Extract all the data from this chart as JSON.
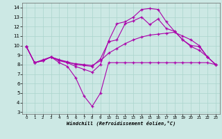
{
  "background_color": "#cce8e4",
  "grid_color": "#aad4cc",
  "line_color": "#aa00aa",
  "xlabel": "Windchill (Refroidissement éolien,°C)",
  "xlim_min": -0.5,
  "xlim_max": 23.5,
  "ylim_min": 2.8,
  "ylim_max": 14.5,
  "yticks": [
    3,
    4,
    5,
    6,
    7,
    8,
    9,
    10,
    11,
    12,
    13,
    14
  ],
  "xticks": [
    0,
    1,
    2,
    3,
    4,
    5,
    6,
    7,
    8,
    9,
    10,
    11,
    12,
    13,
    14,
    15,
    16,
    17,
    18,
    19,
    20,
    21,
    22,
    23
  ],
  "series": [
    {
      "x": [
        0,
        1,
        2,
        3,
        4,
        5,
        6,
        7,
        8,
        9,
        10,
        11,
        12,
        13,
        14,
        15,
        16,
        17,
        18,
        19,
        20,
        21,
        22,
        23
      ],
      "y": [
        9.9,
        8.2,
        8.4,
        8.8,
        8.2,
        7.8,
        6.6,
        4.7,
        3.6,
        5.0,
        8.2,
        8.2,
        8.2,
        8.2,
        8.2,
        8.2,
        8.2,
        8.2,
        8.2,
        8.2,
        8.2,
        8.2,
        8.2,
        8.0
      ]
    },
    {
      "x": [
        0,
        1,
        2,
        3,
        4,
        5,
        6,
        7,
        8,
        9,
        10,
        11,
        12,
        13,
        14,
        15,
        16,
        17,
        18,
        19,
        20,
        21,
        22,
        23
      ],
      "y": [
        9.9,
        8.2,
        8.4,
        8.8,
        8.4,
        8.2,
        8.1,
        8.0,
        7.9,
        8.4,
        9.2,
        9.7,
        10.2,
        10.6,
        10.9,
        11.1,
        11.2,
        11.3,
        11.4,
        11.0,
        10.6,
        10.0,
        8.8,
        8.0
      ]
    },
    {
      "x": [
        0,
        1,
        2,
        3,
        4,
        5,
        6,
        7,
        8,
        9,
        10,
        11,
        12,
        13,
        14,
        15,
        16,
        17,
        18,
        19,
        20,
        21,
        22,
        23
      ],
      "y": [
        9.9,
        8.2,
        8.4,
        8.8,
        8.5,
        8.3,
        8.0,
        7.9,
        7.8,
        8.6,
        10.4,
        10.6,
        12.3,
        12.6,
        13.0,
        12.2,
        12.8,
        11.8,
        11.5,
        10.6,
        9.9,
        9.5,
        8.8,
        8.0
      ]
    },
    {
      "x": [
        0,
        1,
        2,
        3,
        4,
        5,
        6,
        7,
        8,
        9,
        10,
        11,
        12,
        13,
        14,
        15,
        16,
        17,
        18,
        19,
        20,
        21,
        22,
        23
      ],
      "y": [
        9.9,
        8.2,
        8.5,
        8.8,
        8.5,
        8.2,
        7.8,
        7.5,
        7.2,
        8.0,
        10.5,
        12.3,
        12.5,
        13.0,
        13.8,
        13.9,
        13.8,
        12.5,
        11.5,
        10.6,
        10.0,
        9.9,
        8.8,
        8.0
      ]
    }
  ]
}
